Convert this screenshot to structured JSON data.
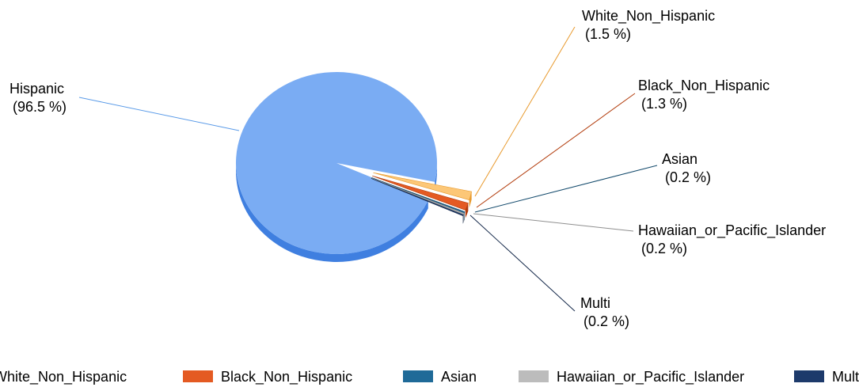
{
  "chart_data": {
    "type": "pie",
    "title": "",
    "slices": [
      {
        "name": "Hispanic",
        "value": 96.5,
        "pct_label": "(96.5 %)",
        "color": "#7aacf3",
        "side_color": "#3f7fe0"
      },
      {
        "name": "White_Non_Hispanic",
        "value": 1.5,
        "pct_label": "(1.5 %)",
        "color": "#fcc777",
        "side_color": "#e89a2e"
      },
      {
        "name": "Black_Non_Hispanic",
        "value": 1.3,
        "pct_label": "(1.3 %)",
        "color": "#e45a22",
        "side_color": "#b23c0c"
      },
      {
        "name": "Asian",
        "value": 0.2,
        "pct_label": "(0.2 %)",
        "color": "#1f6a98",
        "side_color": "#134a6c"
      },
      {
        "name": "Hawaiian_or_Pacific_Islander",
        "value": 0.2,
        "pct_label": "(0.2 %)",
        "color": "#bcbcbc",
        "side_color": "#8f8f8f"
      },
      {
        "name": "Multi",
        "value": 0.2,
        "pct_label": "(0.2 %)",
        "color": "#1d3a6b",
        "side_color": "#122648"
      }
    ],
    "legend": {
      "placement": "bottom",
      "entries": [
        "White_Non_Hispanic",
        "Black_Non_Hispanic",
        "Asian",
        "Hawaiian_or_Pacific_Islander",
        "Multi"
      ]
    }
  }
}
